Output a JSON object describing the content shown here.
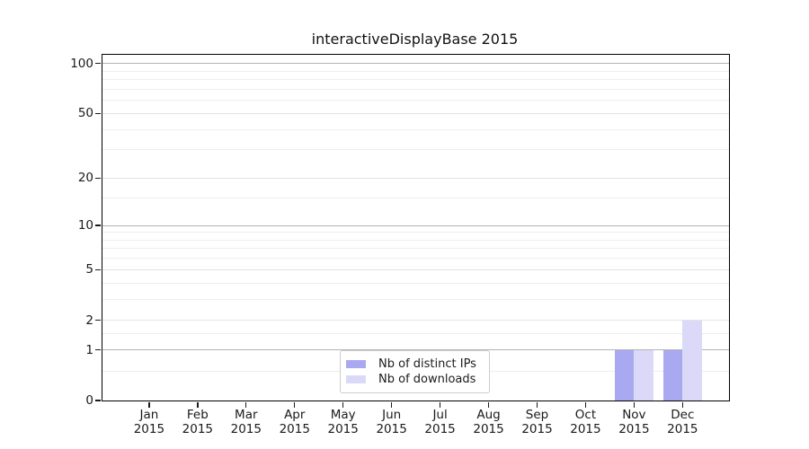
{
  "chart_data": {
    "type": "bar",
    "title": "interactiveDisplayBase 2015",
    "categories": [
      "Jan",
      "Feb",
      "Mar",
      "Apr",
      "May",
      "Jun",
      "Jul",
      "Aug",
      "Sep",
      "Oct",
      "Nov",
      "Dec"
    ],
    "x_tick_second_line": "2015",
    "series": [
      {
        "name": "Nb of distinct IPs",
        "color": "#a9a9f1",
        "values": [
          0,
          0,
          0,
          0,
          0,
          0,
          0,
          0,
          0,
          0,
          1,
          1
        ]
      },
      {
        "name": "Nb of downloads",
        "color": "#dadaf8",
        "values": [
          0,
          0,
          0,
          0,
          0,
          0,
          0,
          0,
          0,
          0,
          1,
          2
        ]
      }
    ],
    "xlabel": "",
    "ylabel": "",
    "y_scale": "log1p",
    "y_ticks": [
      0,
      1,
      2,
      5,
      10,
      20,
      50,
      100
    ],
    "y_major_gridlines": [
      1,
      10,
      100
    ],
    "y_labeled_gridlines": [
      2,
      5,
      20,
      50
    ],
    "y_minor_gridlines": [
      0.5,
      1.5,
      3,
      4,
      6,
      7,
      8,
      9,
      15,
      30,
      40,
      60,
      70,
      80,
      90
    ],
    "ylim": [
      0,
      113
    ],
    "grid": true,
    "legend_position": "lower center",
    "colors": {
      "major_grid": "#b3b3b3",
      "labeled_grid": "#e3e3e3",
      "minor_grid": "#eeeeee",
      "spine": "#000000",
      "text": "#1a1a1a",
      "background": "#ffffff"
    }
  }
}
